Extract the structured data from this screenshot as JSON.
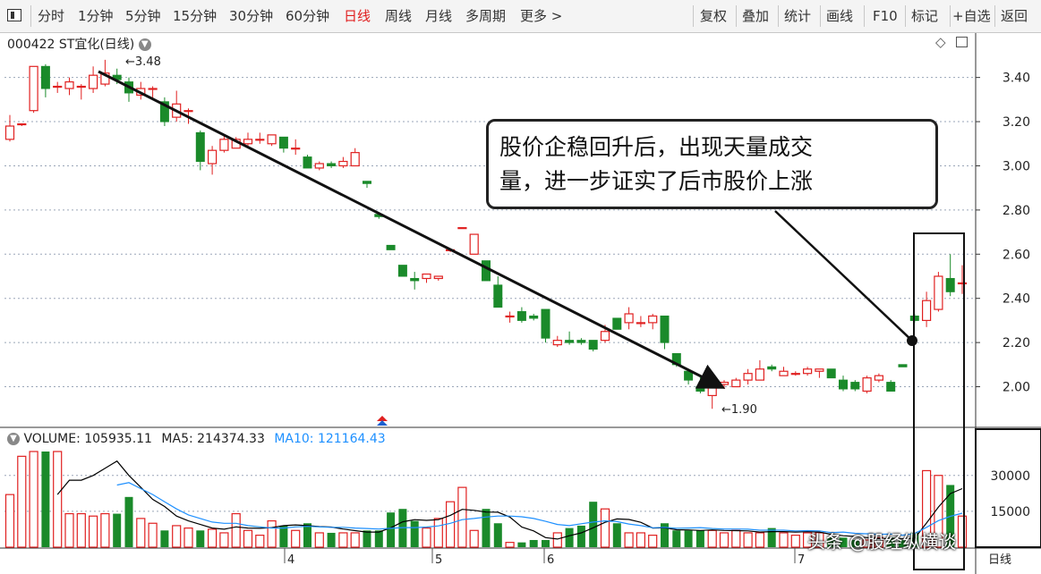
{
  "toolbar": {
    "left_items": [
      "分时",
      "1分钟",
      "5分钟",
      "15分钟",
      "30分钟",
      "60分钟",
      "日线",
      "周线",
      "月线",
      "多周期",
      "更多 >"
    ],
    "active": "日线",
    "right_items": [
      "复权",
      "叠加",
      "统计",
      "画线",
      "F10",
      "标记",
      "+自选",
      "返回"
    ]
  },
  "stock": {
    "code": "000422",
    "name": "ST宜化(日线)"
  },
  "price_axis": {
    "ticks": [
      "3.40",
      "3.20",
      "3.00",
      "2.80",
      "2.60",
      "2.40",
      "2.20",
      "2.00"
    ],
    "min": 1.82,
    "max": 3.52
  },
  "markers": {
    "high_label": "3.48",
    "low_label": "1.90"
  },
  "volume_header": {
    "volume": "VOLUME: 105935.11",
    "ma5": "MA5: 214374.33",
    "ma10": "MA10: 121164.43"
  },
  "volume_axis": {
    "ticks": [
      "30000",
      "15000"
    ]
  },
  "date_axis": {
    "labels": [
      "4",
      "5",
      "6",
      "7"
    ],
    "unit": "日线"
  },
  "annotation": {
    "line1": "股价企稳回升后，出现天量成交",
    "line2": "量，进一步证实了后市股价上涨"
  },
  "watermark": "头条 @股经纵横谈",
  "colors": {
    "up": "#e02020",
    "down": "#1a8a2a",
    "ma5": "#000000",
    "ma10": "#1e90ff",
    "grid": "#9aa6b8"
  },
  "chart_data": {
    "type": "candlestick",
    "candles": [
      [
        3.12,
        3.18,
        3.23,
        3.11
      ],
      [
        3.19,
        3.19,
        3.19,
        3.18
      ],
      [
        3.25,
        3.45,
        3.45,
        3.24
      ],
      [
        3.45,
        3.35,
        3.46,
        3.31
      ],
      [
        3.36,
        3.36,
        3.38,
        3.33
      ],
      [
        3.35,
        3.38,
        3.4,
        3.32
      ],
      [
        3.36,
        3.36,
        3.37,
        3.3
      ],
      [
        3.35,
        3.41,
        3.45,
        3.33
      ],
      [
        3.37,
        3.42,
        3.48,
        3.36
      ],
      [
        3.41,
        3.39,
        3.44,
        3.37
      ],
      [
        3.38,
        3.33,
        3.4,
        3.29
      ],
      [
        3.32,
        3.35,
        3.38,
        3.3
      ],
      [
        3.35,
        3.35,
        3.36,
        3.3
      ],
      [
        3.29,
        3.2,
        3.31,
        3.18
      ],
      [
        3.22,
        3.28,
        3.34,
        3.2
      ],
      [
        3.25,
        3.25,
        3.26,
        3.19
      ],
      [
        3.15,
        3.02,
        3.16,
        2.98
      ],
      [
        3.01,
        3.07,
        3.09,
        2.96
      ],
      [
        3.07,
        3.12,
        3.14,
        3.06
      ],
      [
        3.08,
        3.12,
        3.13,
        3.08
      ],
      [
        3.1,
        3.12,
        3.15,
        3.09
      ],
      [
        3.12,
        3.12,
        3.15,
        3.1
      ],
      [
        3.1,
        3.14,
        3.14,
        3.09
      ],
      [
        3.13,
        3.08,
        3.13,
        3.06
      ],
      [
        3.08,
        3.08,
        3.12,
        3.05
      ],
      [
        3.04,
        2.99,
        3.05,
        2.99
      ],
      [
        2.99,
        3.01,
        3.02,
        2.98
      ],
      [
        3.01,
        3.0,
        3.02,
        2.99
      ],
      [
        3.0,
        3.02,
        3.04,
        2.99
      ],
      [
        3.0,
        3.06,
        3.08,
        3.0
      ],
      [
        2.93,
        2.92,
        2.93,
        2.9
      ],
      [
        2.78,
        2.77,
        2.79,
        2.76
      ],
      [
        2.64,
        2.62,
        2.64,
        2.62
      ],
      [
        2.55,
        2.5,
        2.55,
        2.5
      ],
      [
        2.49,
        2.48,
        2.52,
        2.44
      ],
      [
        2.49,
        2.51,
        2.51,
        2.47
      ],
      [
        2.49,
        2.5,
        2.5,
        2.48
      ],
      [
        2.62,
        2.62,
        2.62,
        2.61
      ],
      [
        2.72,
        2.72,
        2.72,
        2.72
      ],
      [
        2.6,
        2.69,
        2.69,
        2.6
      ],
      [
        2.57,
        2.48,
        2.57,
        2.48
      ],
      [
        2.46,
        2.36,
        2.5,
        2.36
      ],
      [
        2.32,
        2.32,
        2.34,
        2.29
      ],
      [
        2.34,
        2.3,
        2.36,
        2.29
      ],
      [
        2.32,
        2.31,
        2.33,
        2.3
      ],
      [
        2.35,
        2.22,
        2.35,
        2.2
      ],
      [
        2.19,
        2.21,
        2.23,
        2.18
      ],
      [
        2.21,
        2.2,
        2.25,
        2.19
      ],
      [
        2.21,
        2.2,
        2.22,
        2.19
      ],
      [
        2.21,
        2.17,
        2.21,
        2.16
      ],
      [
        2.21,
        2.25,
        2.28,
        2.2
      ],
      [
        2.31,
        2.26,
        2.31,
        2.26
      ],
      [
        2.29,
        2.33,
        2.36,
        2.26
      ],
      [
        2.29,
        2.29,
        2.32,
        2.27
      ],
      [
        2.29,
        2.32,
        2.33,
        2.26
      ],
      [
        2.32,
        2.2,
        2.32,
        2.17
      ],
      [
        2.15,
        2.1,
        2.15,
        2.09
      ],
      [
        2.07,
        2.03,
        2.07,
        2.01
      ],
      [
        2.0,
        1.98,
        2.05,
        1.97
      ],
      [
        1.96,
        2.0,
        2.01,
        1.9
      ],
      [
        2.01,
        2.02,
        2.03,
        1.99
      ],
      [
        2.0,
        2.03,
        2.04,
        2.0
      ],
      [
        2.03,
        2.06,
        2.08,
        2.01
      ],
      [
        2.03,
        2.08,
        2.12,
        2.03
      ],
      [
        2.09,
        2.08,
        2.1,
        2.07
      ],
      [
        2.05,
        2.07,
        2.09,
        2.05
      ],
      [
        2.06,
        2.06,
        2.07,
        2.05
      ],
      [
        2.06,
        2.08,
        2.09,
        2.05
      ],
      [
        2.07,
        2.08,
        2.08,
        2.04
      ],
      [
        2.08,
        2.04,
        2.08,
        2.04
      ],
      [
        2.03,
        1.99,
        2.05,
        1.98
      ],
      [
        2.02,
        1.99,
        2.03,
        1.98
      ],
      [
        1.98,
        2.04,
        2.05,
        1.97
      ],
      [
        2.03,
        2.05,
        2.06,
        2.02
      ],
      [
        2.02,
        1.98,
        2.03,
        1.98
      ],
      [
        2.1,
        2.09,
        2.1,
        2.09
      ],
      [
        2.32,
        2.3,
        2.33,
        2.29
      ],
      [
        2.3,
        2.39,
        2.43,
        2.27
      ],
      [
        2.35,
        2.5,
        2.52,
        2.34
      ],
      [
        2.49,
        2.43,
        2.6,
        2.41
      ],
      [
        2.47,
        2.47,
        2.55,
        2.42
      ]
    ],
    "volumes": [
      22000,
      38000,
      40000,
      40000,
      40000,
      14000,
      14000,
      13000,
      14000,
      14000,
      21000,
      12000,
      10000,
      7000,
      9000,
      8000,
      7000,
      7500,
      6000,
      14000,
      7000,
      5000,
      11000,
      9000,
      7000,
      10000,
      6000,
      6000,
      6000,
      6000,
      7000,
      7000,
      14500,
      16000,
      11000,
      8000,
      12000,
      19000,
      25000,
      7000,
      16000,
      10000,
      2000,
      2000,
      3000,
      3000,
      6000,
      8000,
      9000,
      19000,
      16000,
      10000,
      6000,
      6000,
      5000,
      10000,
      7000,
      7000,
      7000,
      7000,
      6000,
      7000,
      6000,
      6000,
      8000,
      6000,
      5000,
      6000,
      6000,
      4000,
      4000,
      3000,
      3000,
      4000,
      4000,
      3000,
      6000,
      32000,
      30000,
      26000,
      13000
    ],
    "ma5": [
      null,
      null,
      null,
      null,
      22000,
      28000,
      28000,
      30000,
      33000,
      36000,
      30000,
      25000,
      20000,
      17000,
      13000,
      11000,
      9500,
      8000,
      7500,
      8500,
      8000,
      7900,
      8200,
      9000,
      9300,
      9000,
      8600,
      8400,
      7600,
      6900,
      6300,
      6300,
      8100,
      10600,
      11500,
      11200,
      11500,
      13300,
      15800,
      15400,
      14700,
      14600,
      12600,
      8400,
      6800,
      4000,
      3400,
      4800,
      6000,
      8100,
      10400,
      11800,
      11600,
      10400,
      8000,
      8100,
      7300,
      7200,
      7000,
      7200,
      7000,
      6900,
      6800,
      6300,
      6500,
      6500,
      6300,
      6500,
      6300,
      5400,
      4800,
      4500,
      4000,
      3600,
      3600,
      3500,
      3700,
      10100,
      16800,
      22400,
      24500
    ],
    "ma10": [
      null,
      null,
      null,
      null,
      null,
      null,
      null,
      null,
      null,
      26000,
      27000,
      24500,
      22000,
      19000,
      16000,
      13500,
      12000,
      10500,
      10000,
      10000,
      9000,
      8500,
      8000,
      8000,
      8500,
      8700,
      8500,
      8300,
      8300,
      8000,
      7800,
      7600,
      7900,
      8200,
      8200,
      8400,
      8900,
      10000,
      11500,
      12000,
      12600,
      13000,
      13000,
      12700,
      12000,
      10800,
      9500,
      9000,
      9800,
      10500,
      11000,
      10700,
      9700,
      9000,
      8100,
      8300,
      7900,
      8000,
      8200,
      7800,
      7600,
      7600,
      7500,
      7100,
      7100,
      7100,
      6800,
      6900,
      6800,
      6100,
      6300,
      5800,
      5600,
      5400,
      5500,
      5000,
      5700,
      8300,
      11100,
      12900,
      14200
    ],
    "volume_max": 40000
  }
}
